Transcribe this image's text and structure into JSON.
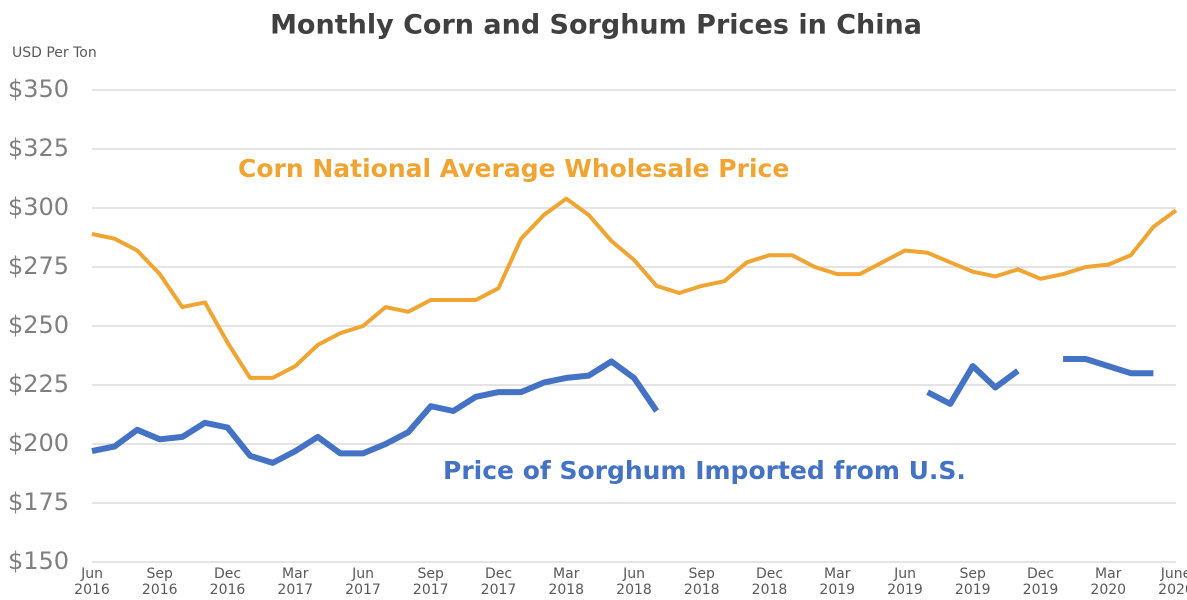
{
  "chart_data": {
    "type": "line",
    "title": "Monthly Corn and Sorghum Prices in China",
    "y_label": "USD Per Ton",
    "categories": [
      "Jun 2016",
      null,
      null,
      "Sep 2016",
      null,
      null,
      "Dec 2016",
      null,
      null,
      "Mar 2017",
      null,
      null,
      "Jun 2017",
      null,
      null,
      "Sep 2017",
      null,
      null,
      "Dec 2017",
      null,
      null,
      "Mar 2018",
      null,
      null,
      "Jun 2018",
      null,
      null,
      "Sep 2018",
      null,
      null,
      "Dec 2018",
      null,
      null,
      "Mar 2019",
      null,
      null,
      "Jun 2019",
      null,
      null,
      "Sep 2019",
      null,
      null,
      "Dec 2019",
      null,
      null,
      "Mar 2020",
      null,
      null,
      "June 2020"
    ],
    "series": [
      {
        "name": "Corn National Average Wholesale Price",
        "color": "#f0a431",
        "values": [
          289,
          287,
          282,
          272,
          258,
          260,
          243,
          228,
          228,
          233,
          242,
          247,
          250,
          258,
          256,
          261,
          261,
          261,
          266,
          287,
          297,
          304,
          297,
          286,
          278,
          267,
          264,
          267,
          269,
          277,
          280,
          280,
          275,
          272,
          272,
          277,
          282,
          281,
          277,
          273,
          271,
          274,
          270,
          272,
          275,
          276,
          280,
          292,
          299
        ]
      },
      {
        "name": "Price of Sorghum Imported from U.S.",
        "color": "#4472c4",
        "values": [
          197,
          199,
          206,
          202,
          203,
          209,
          207,
          195,
          192,
          197,
          203,
          196,
          196,
          200,
          205,
          216,
          214,
          220,
          222,
          222,
          226,
          228,
          229,
          235,
          228,
          214,
          null,
          null,
          null,
          null,
          null,
          null,
          null,
          null,
          null,
          null,
          null,
          222,
          217,
          233,
          224,
          231,
          null,
          236,
          236,
          233,
          230,
          230,
          null
        ]
      }
    ],
    "ylim": [
      150,
      350
    ],
    "yticks": [
      {
        "value": 150,
        "label": "$150"
      },
      {
        "value": 175,
        "label": "$175"
      },
      {
        "value": 200,
        "label": "$200"
      },
      {
        "value": 225,
        "label": "$225"
      },
      {
        "value": 250,
        "label": "$250"
      },
      {
        "value": 275,
        "label": "$275"
      },
      {
        "value": 300,
        "label": "$300"
      },
      {
        "value": 325,
        "label": "$325"
      },
      {
        "value": 350,
        "label": "$350"
      }
    ],
    "grid": true
  }
}
